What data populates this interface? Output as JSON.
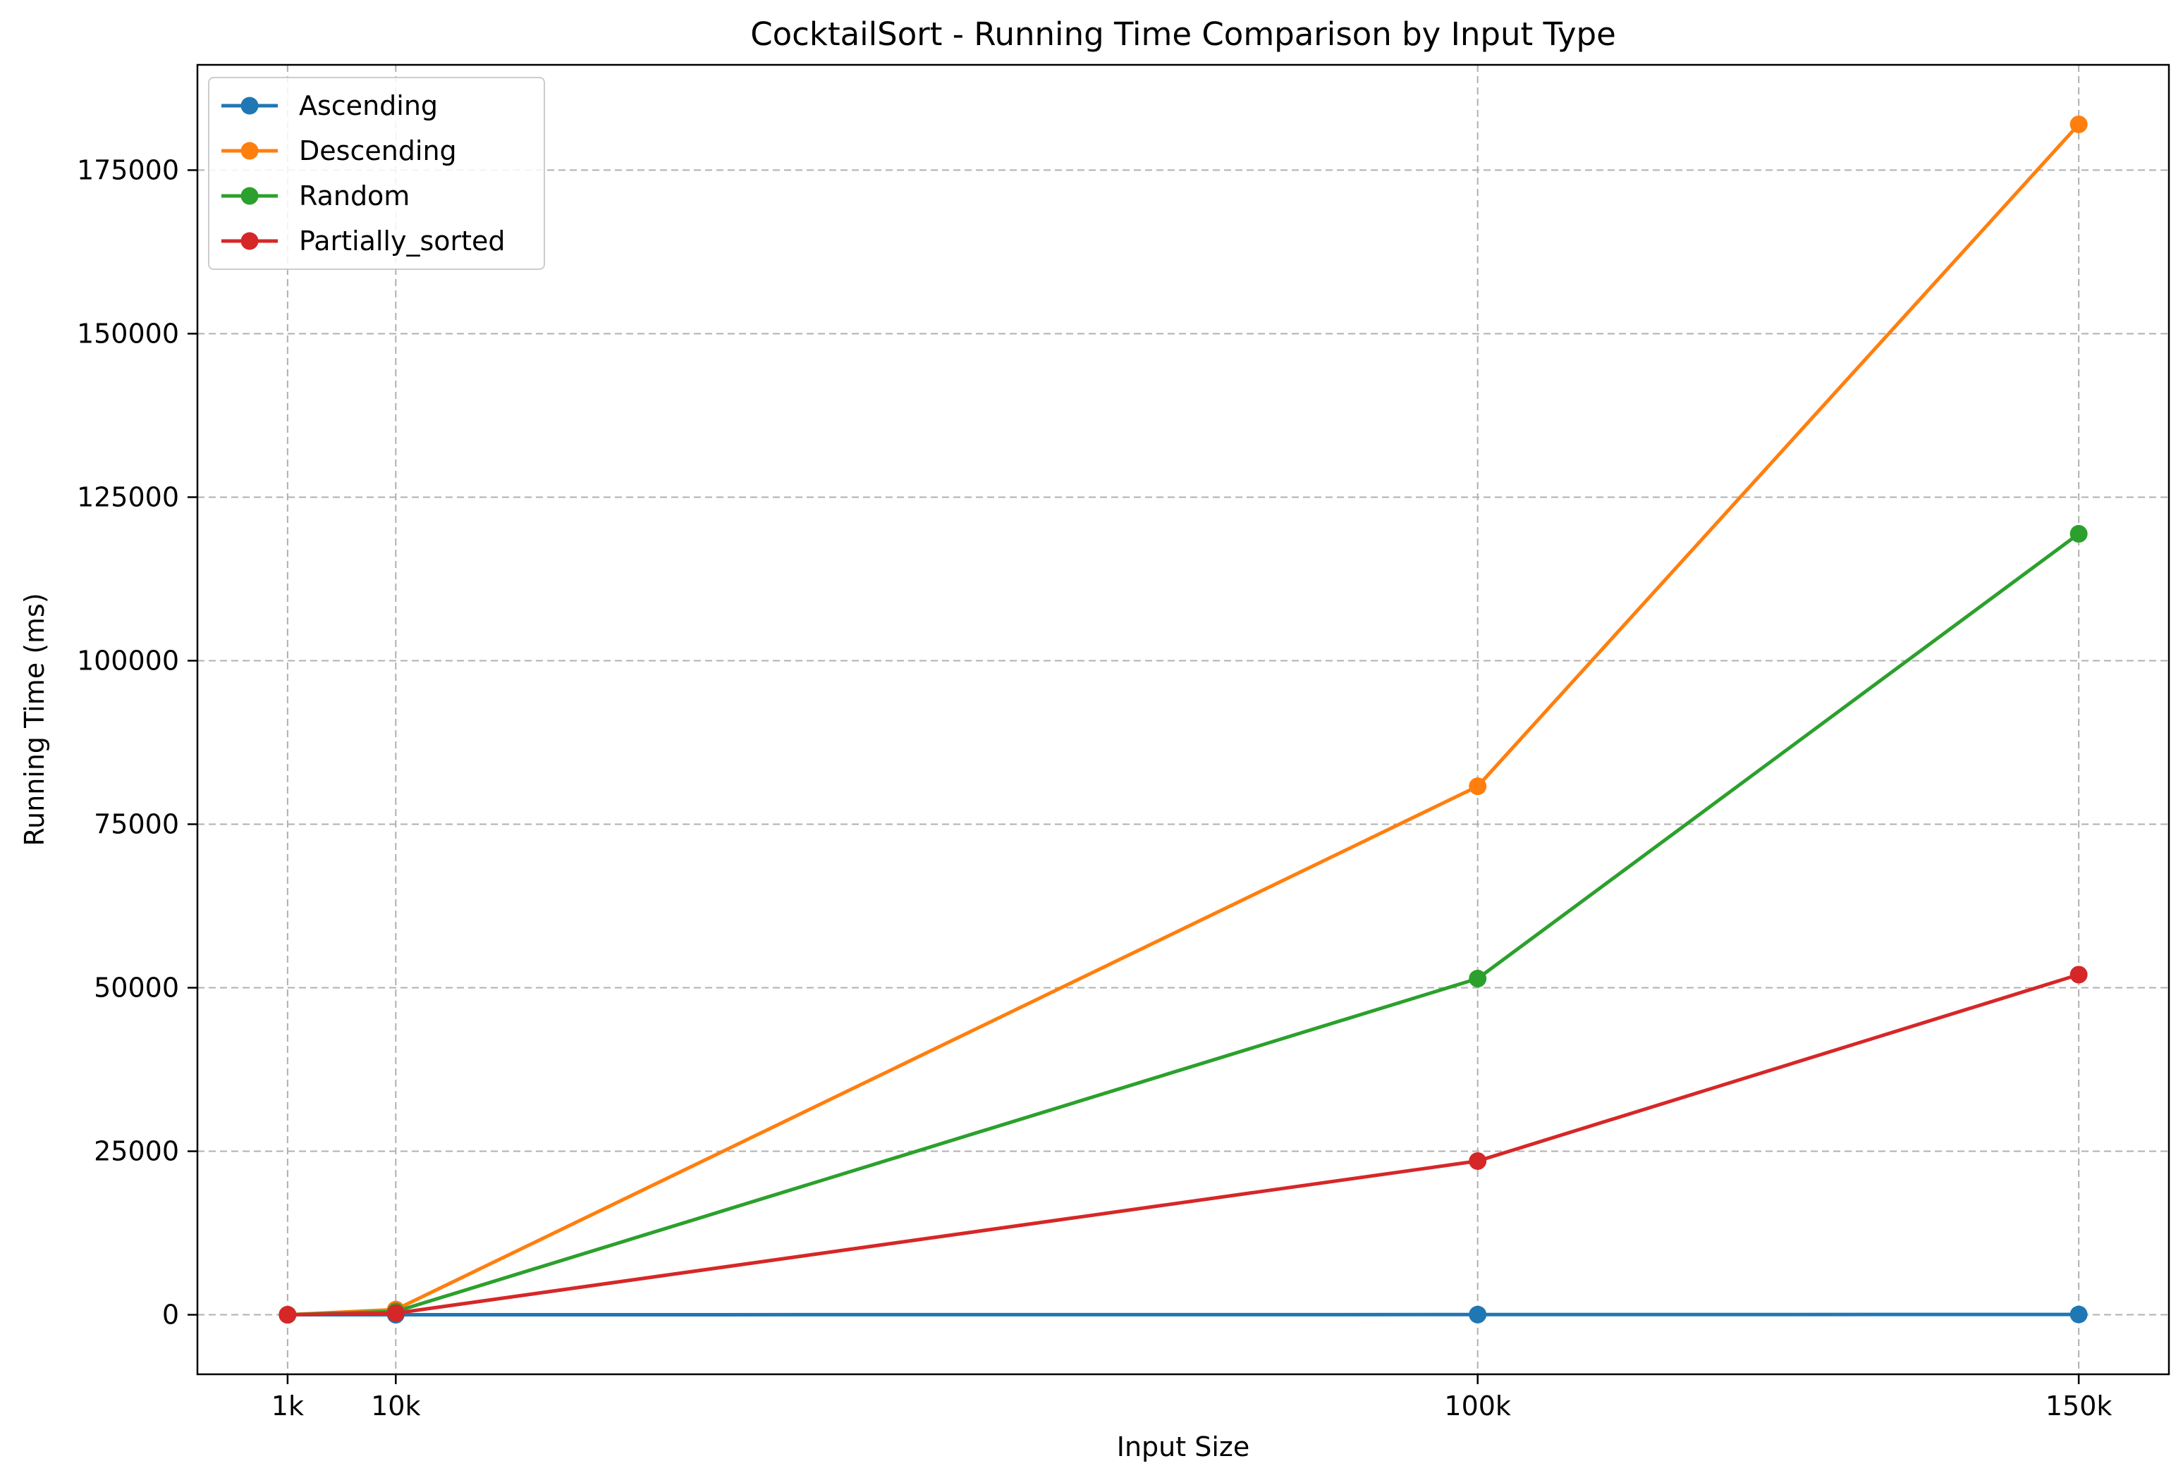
{
  "chart_data": {
    "type": "line",
    "title": "CocktailSort - Running Time Comparison by Input Type",
    "xlabel": "Input Size",
    "ylabel": "Running Time (ms)",
    "x": [
      1000,
      10000,
      100000,
      150000
    ],
    "x_tick_labels": [
      "1k",
      "10k",
      "100k",
      "150k"
    ],
    "xlim": [
      -6500,
      157500
    ],
    "ylim": [
      -9100,
      191100
    ],
    "y_ticks": [
      0,
      25000,
      50000,
      75000,
      100000,
      125000,
      150000,
      175000
    ],
    "y_tick_labels": [
      "0",
      "25000",
      "50000",
      "75000",
      "100000",
      "125000",
      "150000",
      "175000"
    ],
    "grid": true,
    "grid_style": "dashed",
    "legend_position": "top-left",
    "series": [
      {
        "name": "Ascending",
        "color": "#1f77b4",
        "values": [
          0,
          10,
          30,
          45
        ]
      },
      {
        "name": "Descending",
        "color": "#ff7f0e",
        "values": [
          10,
          800,
          80800,
          182000
        ]
      },
      {
        "name": "Random",
        "color": "#2ca02c",
        "values": [
          5,
          500,
          51400,
          119400
        ]
      },
      {
        "name": "Partially_sorted",
        "color": "#d62728",
        "values": [
          2,
          240,
          23500,
          52000
        ]
      }
    ]
  }
}
